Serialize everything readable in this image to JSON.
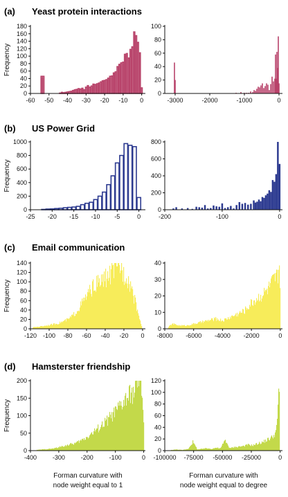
{
  "figure": {
    "ylabel": "Frequency",
    "xlabel_left": [
      "Forman curvature with",
      "node weight equal to 1"
    ],
    "xlabel_right": [
      "Forman curvature with",
      "node weight equal to degree"
    ]
  },
  "chart_data": [
    {
      "panel": "(a)",
      "title": "Yeast protein interactions",
      "type": "bar",
      "style": "outline",
      "color": "#b8436a",
      "xlim": [
        -60,
        2
      ],
      "ylim": [
        0,
        180
      ],
      "xticks": [
        -60,
        -50,
        -40,
        -30,
        -20,
        -10,
        0
      ],
      "yticks": [
        0,
        20,
        40,
        60,
        80,
        100,
        120,
        140,
        160,
        180
      ],
      "bin_width": 1,
      "x": [
        -54,
        -53,
        -44,
        -43,
        -42,
        -41,
        -40,
        -39,
        -38,
        -37,
        -36,
        -35,
        -34,
        -33,
        -32,
        -31,
        -30,
        -29,
        -28,
        -27,
        -26,
        -25,
        -24,
        -23,
        -22,
        -21,
        -20,
        -19,
        -18,
        -17,
        -16,
        -15,
        -14,
        -13,
        -12,
        -11,
        -10,
        -9,
        -8,
        -7,
        -6,
        -5,
        -4,
        -3,
        -2,
        -1,
        0
      ],
      "values": [
        46,
        46,
        1,
        3,
        2,
        3,
        4,
        5,
        6,
        8,
        10,
        11,
        13,
        12,
        14,
        10,
        17,
        21,
        17,
        20,
        25,
        24,
        26,
        28,
        31,
        34,
        35,
        37,
        41,
        46,
        47,
        55,
        58,
        72,
        78,
        82,
        84,
        105,
        107,
        95,
        118,
        125,
        165,
        155,
        137,
        109,
        15
      ]
    },
    {
      "panel": "(a)",
      "type": "bar",
      "style": "filled",
      "color": "#b8436a",
      "xlim": [
        -3300,
        100
      ],
      "ylim": [
        0,
        100
      ],
      "xticks": [
        -3000,
        -2000,
        -1000,
        0
      ],
      "yticks": [
        0,
        20,
        40,
        60,
        80,
        100
      ],
      "bin_width": 20,
      "x": [
        -3020,
        -3000,
        -1240,
        -1100,
        -1000,
        -940,
        -880,
        -820,
        -760,
        -720,
        -680,
        -640,
        -600,
        -560,
        -520,
        -480,
        -440,
        -400,
        -360,
        -320,
        -280,
        -240,
        -200,
        -160,
        -120,
        -100,
        -80,
        -60,
        -40,
        -20,
        0
      ],
      "values": [
        46,
        20,
        1,
        2,
        1,
        1,
        1,
        3,
        2,
        5,
        4,
        7,
        10,
        9,
        12,
        15,
        8,
        11,
        15,
        13,
        5,
        14,
        25,
        18,
        22,
        58,
        22,
        62,
        38,
        85,
        15
      ]
    },
    {
      "panel": "(b)",
      "title": "US Power Grid",
      "type": "bar",
      "style": "outline",
      "color": "#2c3a90",
      "xlim": [
        -25,
        1.5
      ],
      "ylim": [
        0,
        1000
      ],
      "xticks": [
        -25,
        -20,
        -15,
        -10,
        -5,
        0
      ],
      "yticks": [
        0,
        200,
        400,
        600,
        800,
        1000
      ],
      "bin_width": 1,
      "x": [
        -22,
        -21,
        -20,
        -19,
        -18,
        -17,
        -16,
        -15,
        -14,
        -13,
        -12,
        -11,
        -10,
        -9,
        -8,
        -7,
        -6,
        -5,
        -4,
        -3,
        -2,
        -1,
        0
      ],
      "values": [
        5,
        10,
        12,
        18,
        22,
        30,
        35,
        40,
        50,
        75,
        95,
        110,
        150,
        200,
        260,
        370,
        500,
        690,
        800,
        975,
        950,
        930,
        180
      ]
    },
    {
      "panel": "(b)",
      "type": "bar",
      "style": "filled",
      "color": "#2c3a90",
      "xlim": [
        -200,
        5
      ],
      "ylim": [
        0,
        800
      ],
      "xticks": [
        -200,
        -100,
        0
      ],
      "yticks": [
        0,
        200,
        400,
        600,
        800
      ],
      "bin_width": 3,
      "x": [
        -185,
        -180,
        -170,
        -160,
        -152,
        -145,
        -140,
        -135,
        -130,
        -125,
        -120,
        -115,
        -110,
        -105,
        -100,
        -95,
        -90,
        -85,
        -80,
        -75,
        -70,
        -65,
        -60,
        -55,
        -50,
        -45,
        -42,
        -39,
        -36,
        -33,
        -30,
        -27,
        -24,
        -21,
        -18,
        -15,
        -12,
        -9,
        -6,
        -3,
        0
      ],
      "values": [
        15,
        30,
        15,
        20,
        10,
        35,
        30,
        25,
        55,
        15,
        20,
        50,
        40,
        35,
        75,
        20,
        30,
        45,
        15,
        55,
        90,
        70,
        80,
        60,
        70,
        110,
        85,
        95,
        120,
        100,
        150,
        140,
        170,
        190,
        230,
        210,
        350,
        330,
        420,
        800,
        540
      ]
    },
    {
      "panel": "(c)",
      "title": "Email communication",
      "type": "histogram",
      "style": "filled-dense",
      "color": "#f7ec5a",
      "xlim": [
        -120,
        3
      ],
      "ylim": [
        0,
        140
      ],
      "xticks": [
        -120,
        -100,
        -80,
        -60,
        -40,
        -20,
        0
      ],
      "yticks": [
        0,
        20,
        40,
        60,
        80,
        100,
        120,
        140
      ],
      "x": [
        -118,
        -110,
        -100,
        -90,
        -80,
        -75,
        -70,
        -65,
        -60,
        -55,
        -50,
        -45,
        -40,
        -35,
        -30,
        -27,
        -25,
        -22,
        -20,
        -18,
        -15,
        -12,
        -10,
        -8,
        -5,
        -3,
        -1
      ],
      "values": [
        3,
        5,
        8,
        12,
        20,
        28,
        40,
        55,
        70,
        85,
        95,
        100,
        108,
        115,
        130,
        120,
        135,
        125,
        115,
        118,
        100,
        90,
        70,
        55,
        35,
        15,
        5
      ]
    },
    {
      "panel": "(c)",
      "type": "histogram",
      "style": "filled-dense",
      "color": "#f7ec5a",
      "xlim": [
        -8000,
        150
      ],
      "ylim": [
        0,
        40
      ],
      "xticks": [
        -8000,
        -6000,
        -4000,
        -2000,
        0
      ],
      "yticks": [
        0,
        10,
        20,
        30,
        40
      ],
      "x": [
        -7800,
        -7500,
        -7000,
        -6500,
        -6000,
        -5500,
        -5000,
        -4500,
        -4000,
        -3500,
        -3000,
        -2500,
        -2000,
        -1700,
        -1400,
        -1100,
        -800,
        -600,
        -400,
        -200,
        -100,
        0
      ],
      "values": [
        1,
        3,
        2,
        2,
        3,
        4,
        5,
        6,
        5,
        7,
        9,
        11,
        16,
        18,
        20,
        22,
        25,
        28,
        30,
        32,
        39,
        20
      ]
    },
    {
      "panel": "(d)",
      "title": "Hamsterster friendship",
      "type": "histogram",
      "style": "filled-dense",
      "color": "#c3d94a",
      "xlim": [
        -400,
        6
      ],
      "ylim": [
        0,
        200
      ],
      "xticks": [
        -400,
        -300,
        -200,
        -100,
        0
      ],
      "yticks": [
        0,
        50,
        100,
        150,
        200
      ],
      "x": [
        -380,
        -350,
        -320,
        -300,
        -280,
        -260,
        -240,
        -220,
        -200,
        -180,
        -160,
        -140,
        -120,
        -100,
        -80,
        -60,
        -40,
        -30,
        -20,
        -10,
        -5,
        0
      ],
      "values": [
        2,
        4,
        6,
        10,
        14,
        18,
        22,
        30,
        40,
        52,
        65,
        78,
        95,
        110,
        130,
        150,
        165,
        175,
        198,
        185,
        150,
        60
      ]
    },
    {
      "panel": "(d)",
      "type": "histogram",
      "style": "filled-dense",
      "color": "#c3d94a",
      "xlim": [
        -100000,
        2000
      ],
      "ylim": [
        0,
        120
      ],
      "xticks": [
        -100000,
        -75000,
        -50000,
        -25000,
        0
      ],
      "yticks": [
        0,
        20,
        40,
        60,
        80,
        100,
        120
      ],
      "x": [
        -95000,
        -90000,
        -85000,
        -80000,
        -76000,
        -72000,
        -68000,
        -64000,
        -60000,
        -56000,
        -52000,
        -48000,
        -44000,
        -40000,
        -36000,
        -32000,
        -28000,
        -24000,
        -20000,
        -16000,
        -12000,
        -8000,
        -5000,
        -3000,
        -1500,
        -500
      ],
      "values": [
        1,
        2,
        1,
        3,
        15,
        2,
        3,
        4,
        3,
        5,
        4,
        18,
        4,
        6,
        7,
        8,
        10,
        9,
        12,
        14,
        18,
        22,
        28,
        40,
        118,
        55
      ]
    }
  ]
}
